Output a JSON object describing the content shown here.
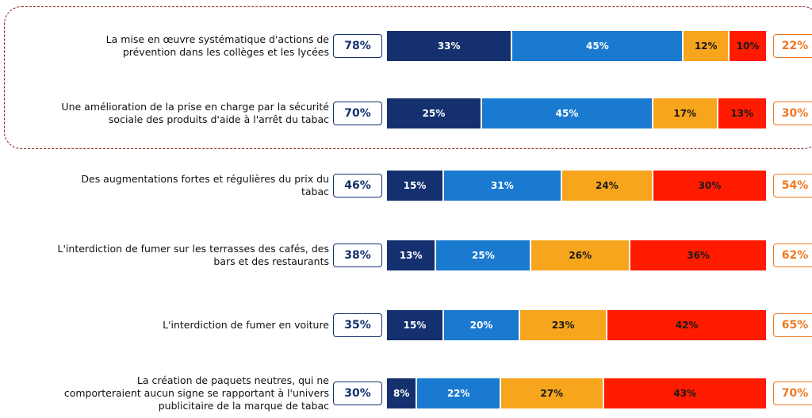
{
  "chart_data": {
    "type": "stacked-bar-horizontal",
    "categories": [
      "La mise en œuvre systématique d'actions de\nprévention dans les collèges et les lycées",
      "Une amélioration de la prise en charge par la sécurité\nsociale des produits d'aide à l'arrêt du tabac",
      "Des augmentations fortes et régulières du prix du\ntabac",
      "L'interdiction de fumer sur les terrasses des cafés, des\nbars et des restaurants",
      "L'interdiction de fumer en voiture",
      "La création de paquets neutres, qui ne\ncomporteraient aucun signe se rapportant à l'univers\npublicitaire de la marque de tabac"
    ],
    "series": [
      {
        "color": "#14306e",
        "text_color": "#ffffff",
        "values": [
          33,
          25,
          15,
          13,
          15,
          8
        ],
        "value_labels": [
          "33%",
          "25%",
          "15%",
          "13%",
          "15%",
          "8%"
        ]
      },
      {
        "color": "#1a7ad0",
        "text_color": "#ffffff",
        "values": [
          45,
          45,
          31,
          25,
          20,
          22
        ],
        "value_labels": [
          "45%",
          "45%",
          "31%",
          "25%",
          "20%",
          "22%"
        ]
      },
      {
        "color": "#f7a51c",
        "text_color": "#1a1a1a",
        "values": [
          12,
          17,
          24,
          26,
          23,
          27
        ],
        "value_labels": [
          "12%",
          "17%",
          "24%",
          "26%",
          "23%",
          "27%"
        ]
      },
      {
        "color": "#ff1a00",
        "text_color": "#1a1a1a",
        "values": [
          10,
          13,
          30,
          36,
          42,
          43
        ],
        "value_labels": [
          "10%",
          "13%",
          "30%",
          "36%",
          "42%",
          "43%"
        ]
      }
    ],
    "left_totals": {
      "color": "#14306e",
      "values": [
        78,
        70,
        46,
        38,
        35,
        30
      ],
      "value_labels": [
        "78%",
        "70%",
        "46%",
        "38%",
        "35%",
        "30%"
      ]
    },
    "right_totals": {
      "color": "#f07820",
      "values": [
        22,
        30,
        54,
        62,
        65,
        70
      ],
      "value_labels": [
        "22%",
        "30%",
        "54%",
        "62%",
        "65%",
        "70%"
      ]
    },
    "xlim": [
      0,
      100
    ]
  }
}
